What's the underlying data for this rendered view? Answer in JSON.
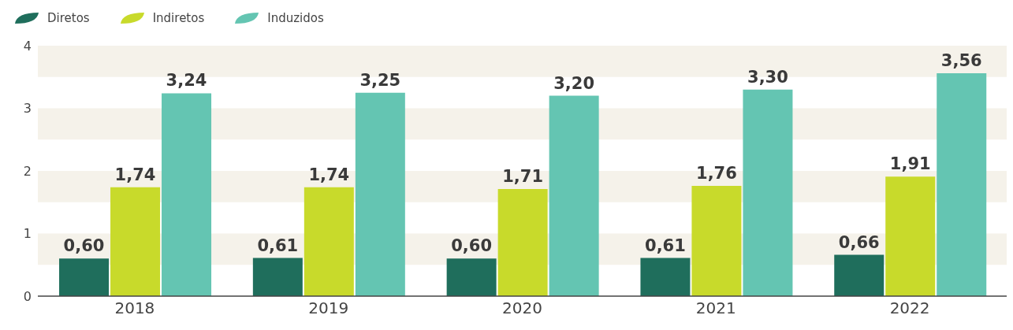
{
  "chart_data": {
    "type": "bar",
    "categories": [
      "2018",
      "2019",
      "2020",
      "2021",
      "2022"
    ],
    "series": [
      {
        "name": "Diretos",
        "color": "#1f6e5c",
        "values": [
          0.6,
          0.61,
          0.6,
          0.61,
          0.66
        ],
        "value_labels": [
          "0,60",
          "0,61",
          "0,60",
          "0,61",
          "0,66"
        ]
      },
      {
        "name": "Indiretos",
        "color": "#c8da2b",
        "values": [
          1.74,
          1.74,
          1.71,
          1.76,
          1.91
        ],
        "value_labels": [
          "1,74",
          "1,74",
          "1,71",
          "1,76",
          "1,91"
        ]
      },
      {
        "name": "Induzidos",
        "color": "#64c5b2",
        "values": [
          3.24,
          3.25,
          3.2,
          3.3,
          3.56
        ],
        "value_labels": [
          "3,24",
          "3,25",
          "3,20",
          "3,30",
          "3,56"
        ]
      }
    ],
    "ylim": [
      0,
      4
    ],
    "yticks": [
      0,
      1,
      2,
      3,
      4
    ],
    "legend": "top left",
    "bands": [
      {
        "axis": "y",
        "from": 0.5,
        "to": 1,
        "color": "#f5f2ea"
      },
      {
        "axis": "y",
        "from": 1.5,
        "to": 2,
        "color": "#f5f2ea"
      },
      {
        "axis": "y",
        "from": 2.5,
        "to": 3,
        "color": "#f5f2ea"
      },
      {
        "axis": "y",
        "from": 3.5,
        "to": 4,
        "color": "#f5f2ea"
      }
    ]
  }
}
